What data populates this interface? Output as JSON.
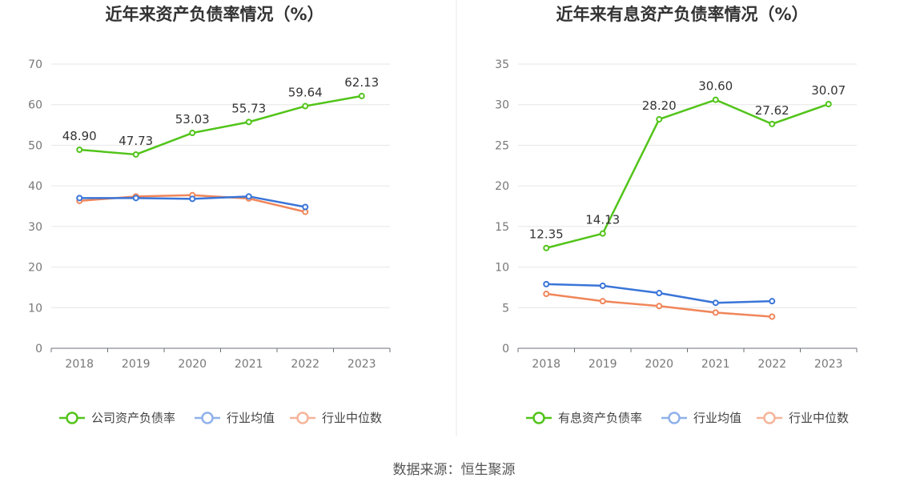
{
  "source": "数据来源：恒生聚源",
  "chart_data": [
    {
      "type": "line",
      "title": "近年来资产负债率情况（%）",
      "categories": [
        "2018",
        "2019",
        "2020",
        "2021",
        "2022",
        "2023"
      ],
      "ylim": [
        0,
        70
      ],
      "yticks": [
        0,
        10,
        20,
        30,
        40,
        50,
        60,
        70
      ],
      "grid": true,
      "legend_position": "bottom",
      "series": [
        {
          "name": "公司资产负债率",
          "color": "#52c41a",
          "values": [
            48.9,
            47.73,
            53.03,
            55.73,
            59.64,
            62.13
          ],
          "labels": [
            "48.90",
            "47.73",
            "53.03",
            "55.73",
            "59.64",
            "62.13"
          ]
        },
        {
          "name": "行业均值",
          "color": "#3a75d8",
          "values": [
            37.0,
            37.0,
            36.8,
            37.4,
            34.8,
            null
          ]
        },
        {
          "name": "行业中位数",
          "color": "#f0865a",
          "values": [
            36.3,
            37.4,
            37.7,
            36.9,
            33.6,
            null
          ]
        }
      ]
    },
    {
      "type": "line",
      "title": "近年来有息资产负债率情况（%）",
      "categories": [
        "2018",
        "2019",
        "2020",
        "2021",
        "2022",
        "2023"
      ],
      "ylim": [
        0,
        35
      ],
      "yticks": [
        0,
        5,
        10,
        15,
        20,
        25,
        30,
        35
      ],
      "grid": true,
      "legend_position": "bottom",
      "series": [
        {
          "name": "有息资产负债率",
          "color": "#52c41a",
          "values": [
            12.35,
            14.13,
            28.2,
            30.6,
            27.62,
            30.07
          ],
          "labels": [
            "12.35",
            "14.13",
            "28.20",
            "30.60",
            "27.62",
            "30.07"
          ]
        },
        {
          "name": "行业均值",
          "color": "#3a75d8",
          "values": [
            7.9,
            7.7,
            6.8,
            5.6,
            5.8,
            null
          ]
        },
        {
          "name": "行业中位数",
          "color": "#f0865a",
          "values": [
            6.7,
            5.8,
            5.2,
            4.4,
            3.9,
            null
          ]
        }
      ]
    }
  ]
}
